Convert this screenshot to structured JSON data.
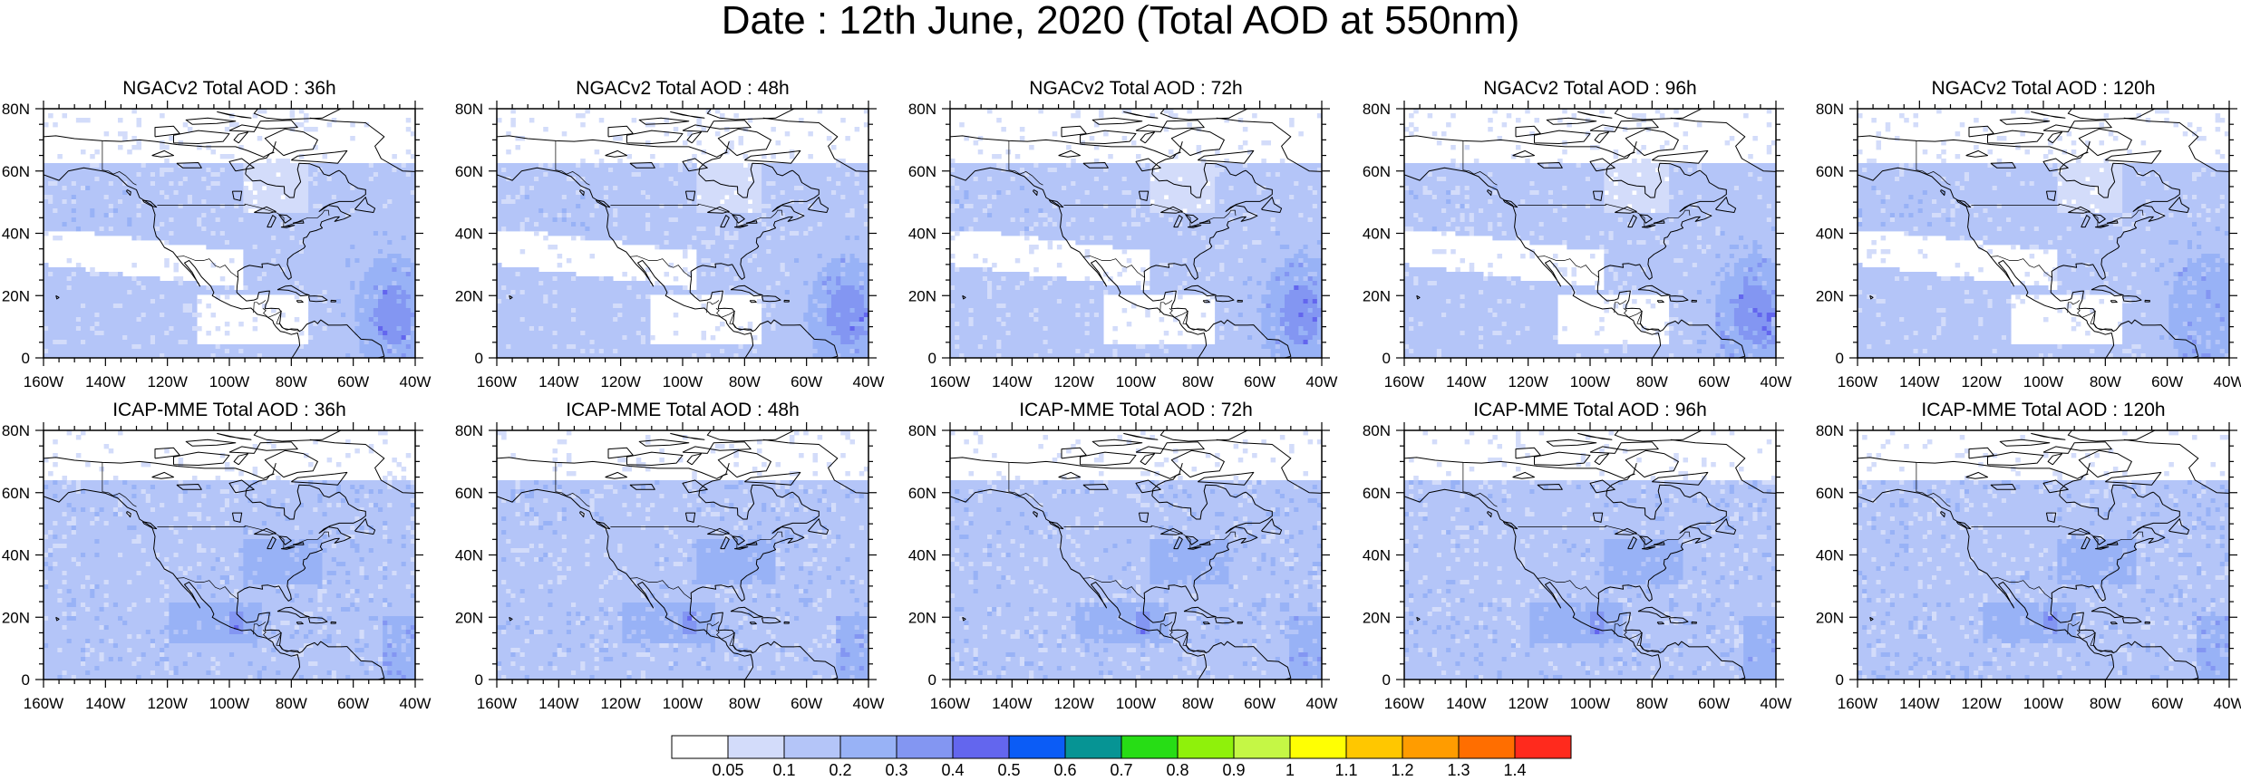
{
  "title": "Date : 12th June, 2020 (Total AOD at 550nm)",
  "panels": [
    {
      "title": "NGACv2 Total AOD : 36h",
      "model": "NGACv2",
      "lead": "36h"
    },
    {
      "title": "NGACv2 Total AOD : 48h",
      "model": "NGACv2",
      "lead": "48h"
    },
    {
      "title": "NGACv2 Total AOD : 72h",
      "model": "NGACv2",
      "lead": "72h"
    },
    {
      "title": "NGACv2 Total AOD : 96h",
      "model": "NGACv2",
      "lead": "96h"
    },
    {
      "title": "NGACv2 Total AOD : 120h",
      "model": "NGACv2",
      "lead": "120h"
    },
    {
      "title": "ICAP-MME Total AOD : 36h",
      "model": "ICAP-MME",
      "lead": "36h"
    },
    {
      "title": "ICAP-MME Total AOD : 48h",
      "model": "ICAP-MME",
      "lead": "48h"
    },
    {
      "title": "ICAP-MME Total AOD : 72h",
      "model": "ICAP-MME",
      "lead": "72h"
    },
    {
      "title": "ICAP-MME Total AOD : 96h",
      "model": "ICAP-MME",
      "lead": "96h"
    },
    {
      "title": "ICAP-MME Total AOD : 120h",
      "model": "ICAP-MME",
      "lead": "120h"
    }
  ],
  "map_extent": {
    "lon": [
      -160,
      -40
    ],
    "lat": [
      0,
      80
    ]
  },
  "lon_ticks": [
    "160W",
    "140W",
    "120W",
    "100W",
    "80W",
    "60W",
    "40W"
  ],
  "lat_ticks": [
    "0",
    "20N",
    "40N",
    "60N",
    "80N"
  ],
  "colorbar": {
    "labels": [
      "0.05",
      "0.1",
      "0.2",
      "0.3",
      "0.4",
      "0.5",
      "0.6",
      "0.7",
      "0.8",
      "0.9",
      "1",
      "1.1",
      "1.2",
      "1.3",
      "1.4"
    ],
    "colors": [
      "#ffffff",
      "#d3dcfa",
      "#b4c5f8",
      "#98b2f6",
      "#8396f2",
      "#6366ee",
      "#0b5cf6",
      "#069494",
      "#27dd15",
      "#8ff10b",
      "#c5f745",
      "#ffff03",
      "#ffc700",
      "#ff9c00",
      "#ff6e00",
      "#ff2a1d"
    ]
  }
}
